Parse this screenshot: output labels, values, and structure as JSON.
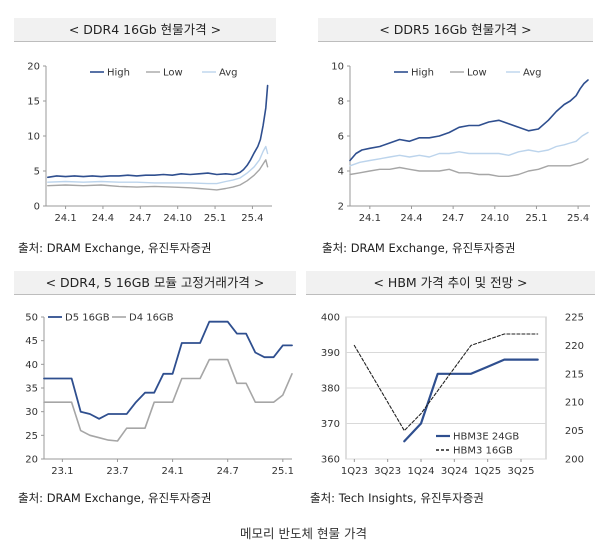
{
  "caption": "메모리 반도체 현물 가격",
  "chart_data": [
    {
      "id": "ddr4",
      "type": "line",
      "title": "< DDR4 16Gb 현물가격 >",
      "source": "출처: DRAM Exchange, 유진투자증권",
      "x_ticks": [
        "24.1",
        "24.4",
        "24.7",
        "24.10",
        "25.1",
        "25.4"
      ],
      "ylim": [
        0,
        20
      ],
      "y_ticks": [
        0,
        5,
        10,
        15,
        20
      ],
      "series": [
        {
          "name": "High",
          "color": "#2f4f8f",
          "width": 1.6,
          "points": [
            [
              0,
              4.1
            ],
            [
              5,
              4.3
            ],
            [
              10,
              4.2
            ],
            [
              15,
              4.3
            ],
            [
              20,
              4.2
            ],
            [
              25,
              4.3
            ],
            [
              30,
              4.2
            ],
            [
              35,
              4.3
            ],
            [
              40,
              4.3
            ],
            [
              45,
              4.4
            ],
            [
              50,
              4.3
            ],
            [
              55,
              4.4
            ],
            [
              60,
              4.4
            ],
            [
              65,
              4.5
            ],
            [
              70,
              4.4
            ],
            [
              75,
              4.6
            ],
            [
              80,
              4.5
            ],
            [
              85,
              4.6
            ],
            [
              90,
              4.7
            ],
            [
              95,
              4.5
            ],
            [
              100,
              4.6
            ],
            [
              104,
              4.5
            ],
            [
              106,
              4.6
            ],
            [
              108,
              4.8
            ],
            [
              110,
              5.2
            ],
            [
              112,
              5.8
            ],
            [
              114,
              6.6
            ],
            [
              116,
              7.6
            ],
            [
              118,
              8.5
            ],
            [
              119.5,
              9.5
            ],
            [
              121,
              11.5
            ],
            [
              122.5,
              14
            ],
            [
              123.5,
              17.2
            ]
          ]
        },
        {
          "name": "Low",
          "color": "#a6a6a6",
          "width": 1.4,
          "points": [
            [
              0,
              2.9
            ],
            [
              10,
              3.0
            ],
            [
              20,
              2.9
            ],
            [
              30,
              3.0
            ],
            [
              40,
              2.8
            ],
            [
              50,
              2.7
            ],
            [
              60,
              2.8
            ],
            [
              70,
              2.7
            ],
            [
              80,
              2.6
            ],
            [
              85,
              2.5
            ],
            [
              90,
              2.4
            ],
            [
              95,
              2.3
            ],
            [
              100,
              2.5
            ],
            [
              104,
              2.7
            ],
            [
              108,
              3.0
            ],
            [
              112,
              3.6
            ],
            [
              116,
              4.4
            ],
            [
              119,
              5.2
            ],
            [
              121,
              6.0
            ],
            [
              122.5,
              6.6
            ],
            [
              123.5,
              5.6
            ]
          ]
        },
        {
          "name": "Avg",
          "color": "#bcd4ec",
          "width": 1.4,
          "points": [
            [
              0,
              3.4
            ],
            [
              10,
              3.5
            ],
            [
              20,
              3.4
            ],
            [
              30,
              3.5
            ],
            [
              40,
              3.4
            ],
            [
              50,
              3.4
            ],
            [
              60,
              3.3
            ],
            [
              70,
              3.3
            ],
            [
              80,
              3.3
            ],
            [
              90,
              3.2
            ],
            [
              95,
              3.2
            ],
            [
              100,
              3.5
            ],
            [
              104,
              3.7
            ],
            [
              108,
              4.0
            ],
            [
              112,
              4.7
            ],
            [
              116,
              5.6
            ],
            [
              119,
              6.6
            ],
            [
              121,
              7.8
            ],
            [
              122.5,
              8.5
            ],
            [
              123.5,
              7.5
            ]
          ]
        }
      ]
    },
    {
      "id": "ddr5",
      "type": "line",
      "title": "< DDR5 16Gb 현물가격 >",
      "source": "출처: DRAM Exchange, 유진투자증권",
      "x_ticks": [
        "24.1",
        "24.4",
        "24.7",
        "24.10",
        "25.1",
        "25.4"
      ],
      "ylim": [
        2,
        10
      ],
      "y_ticks": [
        2,
        4,
        6,
        8,
        10
      ],
      "series": [
        {
          "name": "High",
          "color": "#2f4f8f",
          "width": 1.6,
          "points": [
            [
              0,
              4.6
            ],
            [
              3,
              5.0
            ],
            [
              6,
              5.2
            ],
            [
              10,
              5.3
            ],
            [
              15,
              5.4
            ],
            [
              20,
              5.6
            ],
            [
              25,
              5.8
            ],
            [
              30,
              5.7
            ],
            [
              35,
              5.9
            ],
            [
              40,
              5.9
            ],
            [
              45,
              6.0
            ],
            [
              50,
              6.2
            ],
            [
              55,
              6.5
            ],
            [
              60,
              6.6
            ],
            [
              65,
              6.6
            ],
            [
              70,
              6.8
            ],
            [
              75,
              6.9
            ],
            [
              80,
              6.7
            ],
            [
              85,
              6.5
            ],
            [
              90,
              6.3
            ],
            [
              95,
              6.4
            ],
            [
              100,
              6.9
            ],
            [
              104,
              7.4
            ],
            [
              108,
              7.8
            ],
            [
              111,
              8.0
            ],
            [
              114,
              8.3
            ],
            [
              116,
              8.7
            ],
            [
              118,
              9.0
            ],
            [
              120,
              9.2
            ]
          ]
        },
        {
          "name": "Low",
          "color": "#a6a6a6",
          "width": 1.4,
          "points": [
            [
              0,
              3.8
            ],
            [
              5,
              3.9
            ],
            [
              10,
              4.0
            ],
            [
              15,
              4.1
            ],
            [
              20,
              4.1
            ],
            [
              25,
              4.2
            ],
            [
              30,
              4.1
            ],
            [
              35,
              4.0
            ],
            [
              40,
              4.0
            ],
            [
              45,
              4.0
            ],
            [
              50,
              4.1
            ],
            [
              55,
              3.9
            ],
            [
              60,
              3.9
            ],
            [
              65,
              3.8
            ],
            [
              70,
              3.8
            ],
            [
              75,
              3.7
            ],
            [
              80,
              3.7
            ],
            [
              85,
              3.8
            ],
            [
              90,
              4.0
            ],
            [
              95,
              4.1
            ],
            [
              100,
              4.3
            ],
            [
              104,
              4.3
            ],
            [
              108,
              4.3
            ],
            [
              111,
              4.3
            ],
            [
              114,
              4.4
            ],
            [
              117,
              4.5
            ],
            [
              120,
              4.7
            ]
          ]
        },
        {
          "name": "Avg",
          "color": "#bcd4ec",
          "width": 1.4,
          "points": [
            [
              0,
              4.3
            ],
            [
              5,
              4.5
            ],
            [
              10,
              4.6
            ],
            [
              15,
              4.7
            ],
            [
              20,
              4.8
            ],
            [
              25,
              4.9
            ],
            [
              30,
              4.8
            ],
            [
              35,
              4.9
            ],
            [
              40,
              4.8
            ],
            [
              45,
              5.0
            ],
            [
              50,
              5.0
            ],
            [
              55,
              5.1
            ],
            [
              60,
              5.0
            ],
            [
              65,
              5.0
            ],
            [
              70,
              5.0
            ],
            [
              75,
              5.0
            ],
            [
              80,
              4.9
            ],
            [
              85,
              5.1
            ],
            [
              90,
              5.2
            ],
            [
              95,
              5.1
            ],
            [
              100,
              5.2
            ],
            [
              104,
              5.4
            ],
            [
              108,
              5.5
            ],
            [
              111,
              5.6
            ],
            [
              114,
              5.7
            ],
            [
              117,
              6.0
            ],
            [
              120,
              6.2
            ]
          ]
        }
      ]
    },
    {
      "id": "module",
      "type": "line",
      "title": "< DDR4, 5 16GB 모듈 고정거래가격 >",
      "source": "출처: DRAM Exchange, 유진투자증권",
      "x_ticks": [
        "23.1",
        "23.7",
        "24.1",
        "24.7",
        "25.1"
      ],
      "ylim": [
        20,
        50
      ],
      "y_ticks": [
        20,
        25,
        30,
        35,
        40,
        45,
        50
      ],
      "series": [
        {
          "name": "D5 16GB",
          "color": "#2f4f8f",
          "width": 1.8,
          "points": [
            [
              -2,
              37
            ],
            [
              0,
              37
            ],
            [
              1,
              37
            ],
            [
              2,
              30
            ],
            [
              3,
              29.5
            ],
            [
              4,
              28.5
            ],
            [
              5,
              29.5
            ],
            [
              6,
              29.5
            ],
            [
              7,
              29.5
            ],
            [
              8,
              32
            ],
            [
              9,
              34
            ],
            [
              10,
              34
            ],
            [
              11,
              38
            ],
            [
              12,
              38
            ],
            [
              13,
              44.5
            ],
            [
              14,
              44.5
            ],
            [
              15,
              44.5
            ],
            [
              16,
              49
            ],
            [
              17,
              49
            ],
            [
              18,
              49
            ],
            [
              19,
              46.5
            ],
            [
              20,
              46.5
            ],
            [
              21,
              42.5
            ],
            [
              22,
              41.5
            ],
            [
              23,
              41.5
            ],
            [
              24,
              44
            ],
            [
              25,
              44
            ]
          ]
        },
        {
          "name": "D4 16GB",
          "color": "#a6a6a6",
          "width": 1.6,
          "points": [
            [
              -2,
              32
            ],
            [
              0,
              32
            ],
            [
              1,
              32
            ],
            [
              2,
              26
            ],
            [
              3,
              25
            ],
            [
              4,
              24.5
            ],
            [
              5,
              24
            ],
            [
              6,
              23.8
            ],
            [
              7,
              26.5
            ],
            [
              8,
              26.5
            ],
            [
              9,
              26.5
            ],
            [
              10,
              32
            ],
            [
              11,
              32
            ],
            [
              12,
              32
            ],
            [
              13,
              37
            ],
            [
              14,
              37
            ],
            [
              15,
              37
            ],
            [
              16,
              41
            ],
            [
              17,
              41
            ],
            [
              18,
              41
            ],
            [
              19,
              36
            ],
            [
              20,
              36
            ],
            [
              21,
              32
            ],
            [
              22,
              32
            ],
            [
              23,
              32
            ],
            [
              24,
              33.5
            ],
            [
              25,
              38
            ]
          ]
        }
      ]
    },
    {
      "id": "hbm",
      "type": "line",
      "title": "< HBM 가격 추이 및 전망 >",
      "source": "출처: Tech Insights, 유진투자증권",
      "x_ticks": [
        "1Q23",
        "3Q23",
        "1Q24",
        "3Q24",
        "1Q25",
        "3Q25"
      ],
      "ylim": [
        360,
        400
      ],
      "y_ticks": [
        360,
        370,
        380,
        390,
        400
      ],
      "y2lim": [
        200,
        225
      ],
      "y2_ticks": [
        200,
        205,
        210,
        215,
        220,
        225
      ],
      "series": [
        {
          "name": "HBM3E 24GB",
          "axis": "left",
          "color": "#2f4f8f",
          "width": 2.2,
          "dash": "",
          "points": [
            [
              3,
              365
            ],
            [
              4,
              370
            ],
            [
              5,
              384
            ],
            [
              6,
              384
            ],
            [
              7,
              384
            ],
            [
              8,
              386
            ],
            [
              9,
              388
            ],
            [
              10,
              388
            ],
            [
              11,
              388
            ]
          ]
        },
        {
          "name": "HBM3 16GB",
          "axis": "right",
          "color": "#222222",
          "width": 1.1,
          "dash": "3,2",
          "points": [
            [
              0,
              220
            ],
            [
              1,
              215
            ],
            [
              2,
              210
            ],
            [
              3,
              205
            ],
            [
              4,
              208
            ],
            [
              5,
              212
            ],
            [
              6,
              216
            ],
            [
              7,
              220
            ],
            [
              8,
              221
            ],
            [
              9,
              222
            ],
            [
              10,
              222
            ],
            [
              11,
              222
            ]
          ]
        }
      ]
    }
  ]
}
